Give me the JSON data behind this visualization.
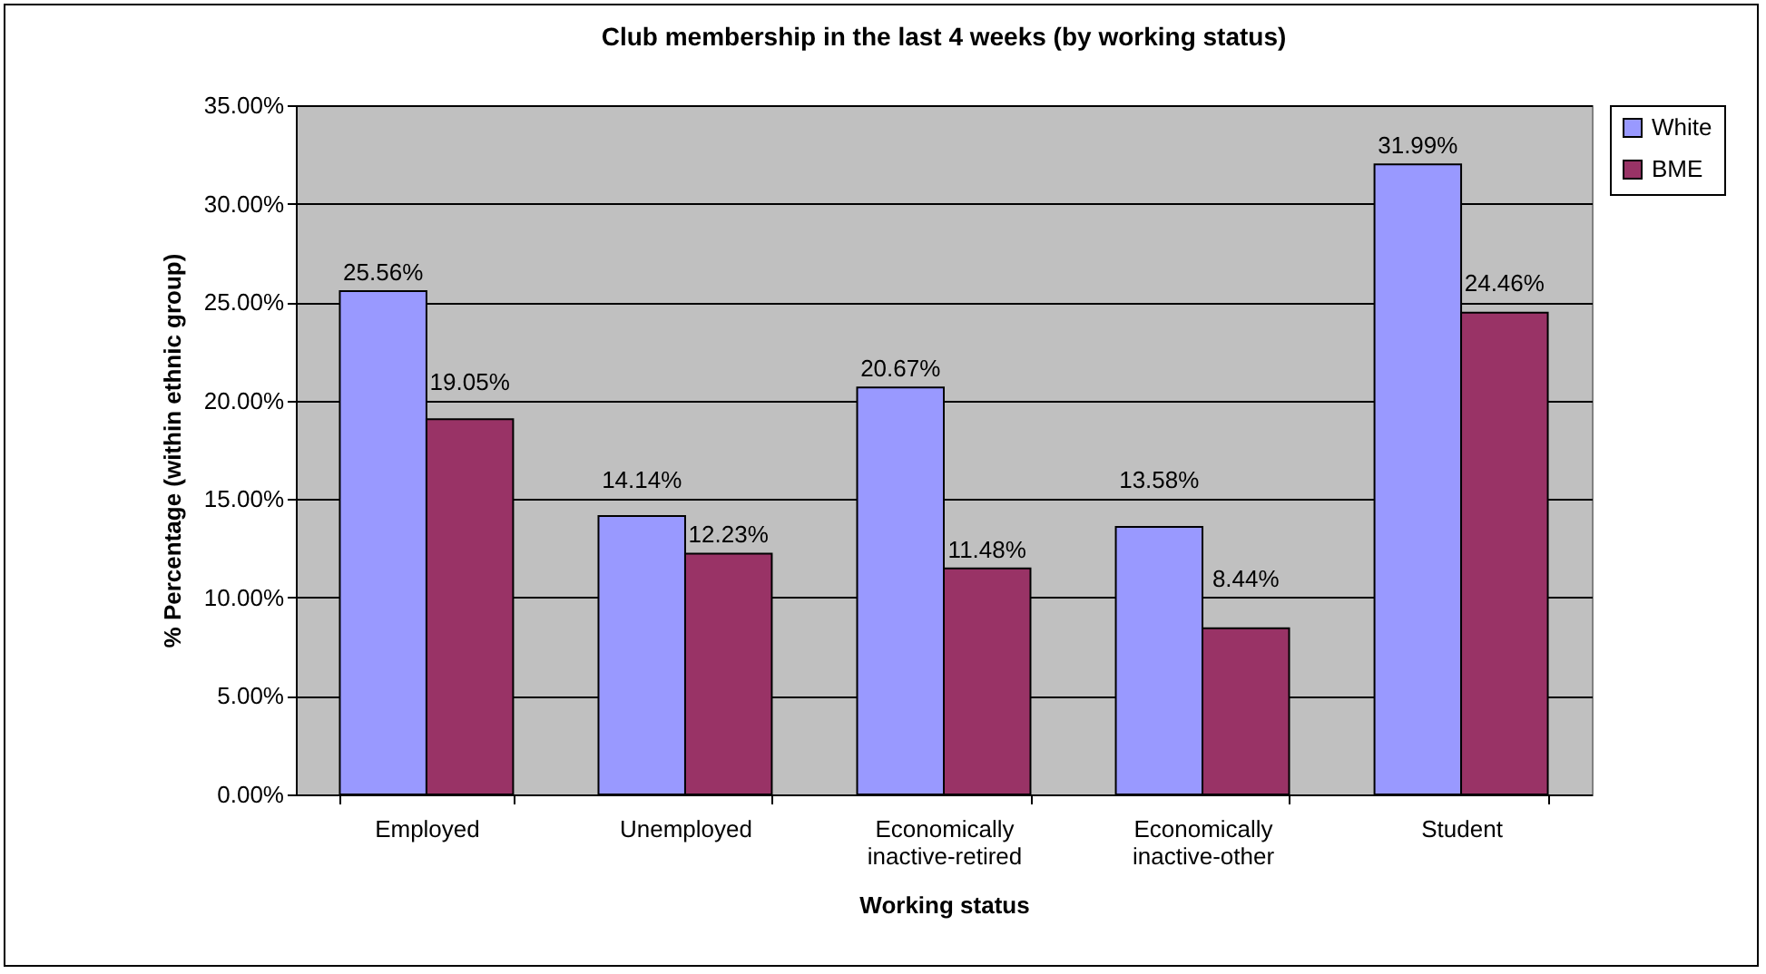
{
  "chart_data": {
    "type": "bar",
    "title": "Club membership in the last 4 weeks (by working status)",
    "xlabel": "Working status",
    "ylabel": "% Percentage (within ethnic group)",
    "categories": [
      "Employed",
      "Unemployed",
      "Economically inactive-retired",
      "Economically inactive-other",
      "Student"
    ],
    "series": [
      {
        "name": "White",
        "color": "#9999ff",
        "values": [
          25.56,
          14.14,
          20.67,
          13.58,
          31.99
        ],
        "value_labels": [
          "25.56%",
          "14.14%",
          "20.67%",
          "13.58%",
          "31.99%"
        ]
      },
      {
        "name": "BME",
        "color": "#993366",
        "values": [
          19.05,
          12.23,
          11.48,
          8.44,
          24.46
        ],
        "value_labels": [
          "19.05%",
          "12.23%",
          "11.48%",
          "8.44%",
          "24.46%"
        ]
      }
    ],
    "ylim": [
      0,
      35
    ],
    "yticks": [
      {
        "value": 0,
        "label": "0.00%"
      },
      {
        "value": 5,
        "label": "5.00%"
      },
      {
        "value": 10,
        "label": "10.00%"
      },
      {
        "value": 15,
        "label": "15.00%"
      },
      {
        "value": 20,
        "label": "20.00%"
      },
      {
        "value": 25,
        "label": "25.00%"
      },
      {
        "value": 30,
        "label": "30.00%"
      },
      {
        "value": 35,
        "label": "35.00%"
      }
    ],
    "grid": "y",
    "legend": "right"
  }
}
